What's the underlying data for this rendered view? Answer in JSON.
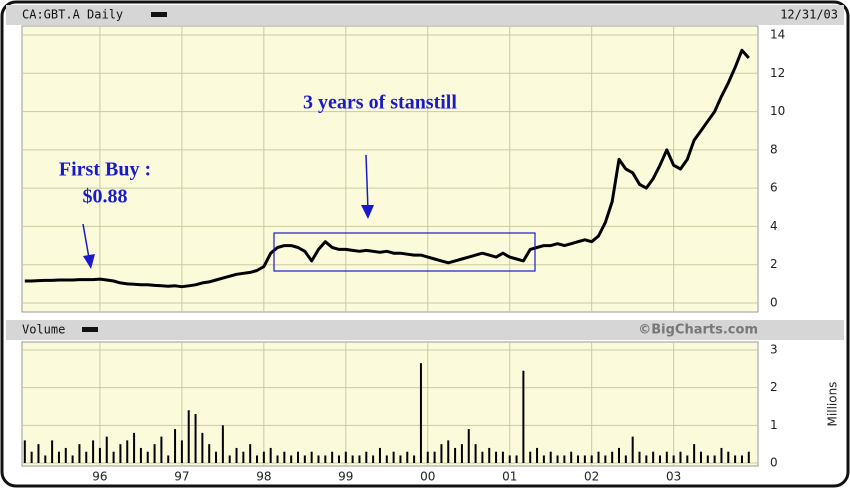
{
  "header": {
    "symbol": "CA:GBT.A Daily",
    "date": "12/31/03",
    "volume_title": "Volume",
    "credit": "©BigCharts.com"
  },
  "annotations": {
    "first_buy": "First Buy :",
    "first_buy_price": "$0.88",
    "standstill": "3 years of stanstill"
  },
  "chart_data": [
    {
      "type": "line",
      "grid": true,
      "color": "#000000",
      "categories": [
        null,
        null,
        null,
        null,
        null,
        null,
        null,
        null,
        null,
        null,
        null,
        "96",
        null,
        null,
        null,
        null,
        null,
        null,
        null,
        null,
        null,
        null,
        null,
        "97",
        null,
        null,
        null,
        null,
        null,
        null,
        null,
        null,
        null,
        null,
        null,
        "98",
        null,
        null,
        null,
        null,
        null,
        null,
        null,
        null,
        null,
        null,
        null,
        "99",
        null,
        null,
        null,
        null,
        null,
        null,
        null,
        null,
        null,
        null,
        null,
        "00",
        null,
        null,
        null,
        null,
        null,
        null,
        null,
        null,
        null,
        null,
        null,
        "01",
        null,
        null,
        null,
        null,
        null,
        null,
        null,
        null,
        null,
        null,
        null,
        "02",
        null,
        null,
        null,
        null,
        null,
        null,
        null,
        null,
        null,
        null,
        null,
        "03",
        null,
        null,
        null,
        null,
        null,
        null,
        null,
        null,
        null,
        null,
        null
      ],
      "values": [
        1.15,
        1.15,
        1.17,
        1.18,
        1.18,
        1.2,
        1.2,
        1.2,
        1.22,
        1.22,
        1.22,
        1.25,
        1.2,
        1.15,
        1.05,
        1.0,
        0.98,
        0.95,
        0.95,
        0.92,
        0.9,
        0.88,
        0.9,
        0.85,
        0.9,
        0.95,
        1.05,
        1.1,
        1.2,
        1.3,
        1.4,
        1.5,
        1.55,
        1.6,
        1.7,
        1.9,
        2.6,
        2.9,
        3.0,
        3.0,
        2.9,
        2.7,
        2.2,
        2.8,
        3.2,
        2.9,
        2.8,
        2.8,
        2.75,
        2.7,
        2.75,
        2.7,
        2.65,
        2.7,
        2.6,
        2.6,
        2.55,
        2.5,
        2.5,
        2.4,
        2.3,
        2.2,
        2.1,
        2.2,
        2.3,
        2.4,
        2.5,
        2.6,
        2.5,
        2.4,
        2.6,
        2.4,
        2.3,
        2.2,
        2.8,
        2.9,
        3.0,
        3.0,
        3.1,
        3.0,
        3.1,
        3.2,
        3.3,
        3.2,
        3.5,
        4.2,
        5.3,
        7.5,
        7.0,
        6.8,
        6.2,
        6.0,
        6.5,
        7.2,
        8.0,
        7.2,
        7.0,
        7.5,
        8.5,
        9.0,
        9.5,
        10.0,
        10.8,
        11.5,
        12.3,
        13.2,
        12.8
      ],
      "ylim": [
        0,
        14
      ],
      "yticks": [
        0,
        2,
        4,
        6,
        8,
        10,
        12,
        14
      ]
    },
    {
      "type": "bar",
      "grid": true,
      "color": "#000000",
      "y_label": "Millions",
      "categories": [
        null,
        null,
        null,
        null,
        null,
        null,
        null,
        null,
        null,
        null,
        null,
        "96",
        null,
        null,
        null,
        null,
        null,
        null,
        null,
        null,
        null,
        null,
        null,
        "97",
        null,
        null,
        null,
        null,
        null,
        null,
        null,
        null,
        null,
        null,
        null,
        "98",
        null,
        null,
        null,
        null,
        null,
        null,
        null,
        null,
        null,
        null,
        null,
        "99",
        null,
        null,
        null,
        null,
        null,
        null,
        null,
        null,
        null,
        null,
        null,
        "00",
        null,
        null,
        null,
        null,
        null,
        null,
        null,
        null,
        null,
        null,
        null,
        "01",
        null,
        null,
        null,
        null,
        null,
        null,
        null,
        null,
        null,
        null,
        null,
        "02",
        null,
        null,
        null,
        null,
        null,
        null,
        null,
        null,
        null,
        null,
        null,
        "03",
        null,
        null,
        null,
        null,
        null,
        null,
        null,
        null,
        null,
        null,
        null
      ],
      "values": [
        0.6,
        0.3,
        0.5,
        0.2,
        0.6,
        0.3,
        0.4,
        0.2,
        0.5,
        0.3,
        0.6,
        0.4,
        0.7,
        0.3,
        0.5,
        0.6,
        0.8,
        0.4,
        0.3,
        0.5,
        0.7,
        0.2,
        0.9,
        0.6,
        1.4,
        1.3,
        0.8,
        0.5,
        0.3,
        1.0,
        0.2,
        0.4,
        0.3,
        0.5,
        0.2,
        0.3,
        0.4,
        0.2,
        0.3,
        0.2,
        0.3,
        0.2,
        0.3,
        0.2,
        0.2,
        0.3,
        0.2,
        0.3,
        0.2,
        0.2,
        0.3,
        0.2,
        0.4,
        0.2,
        0.3,
        0.2,
        0.3,
        0.2,
        2.65,
        0.3,
        0.3,
        0.5,
        0.6,
        0.4,
        0.5,
        0.9,
        0.5,
        0.3,
        0.4,
        0.3,
        0.3,
        0.2,
        0.2,
        2.45,
        0.3,
        0.4,
        0.2,
        0.3,
        0.2,
        0.2,
        0.3,
        0.2,
        0.2,
        0.2,
        0.3,
        0.2,
        0.3,
        0.4,
        0.2,
        0.7,
        0.3,
        0.2,
        0.3,
        0.2,
        0.3,
        0.2,
        0.3,
        0.2,
        0.5,
        0.3,
        0.2,
        0.2,
        0.4,
        0.3,
        0.2,
        0.2,
        0.3
      ],
      "ylim": [
        0,
        3
      ],
      "yticks": [
        0,
        1,
        2,
        3
      ]
    }
  ]
}
